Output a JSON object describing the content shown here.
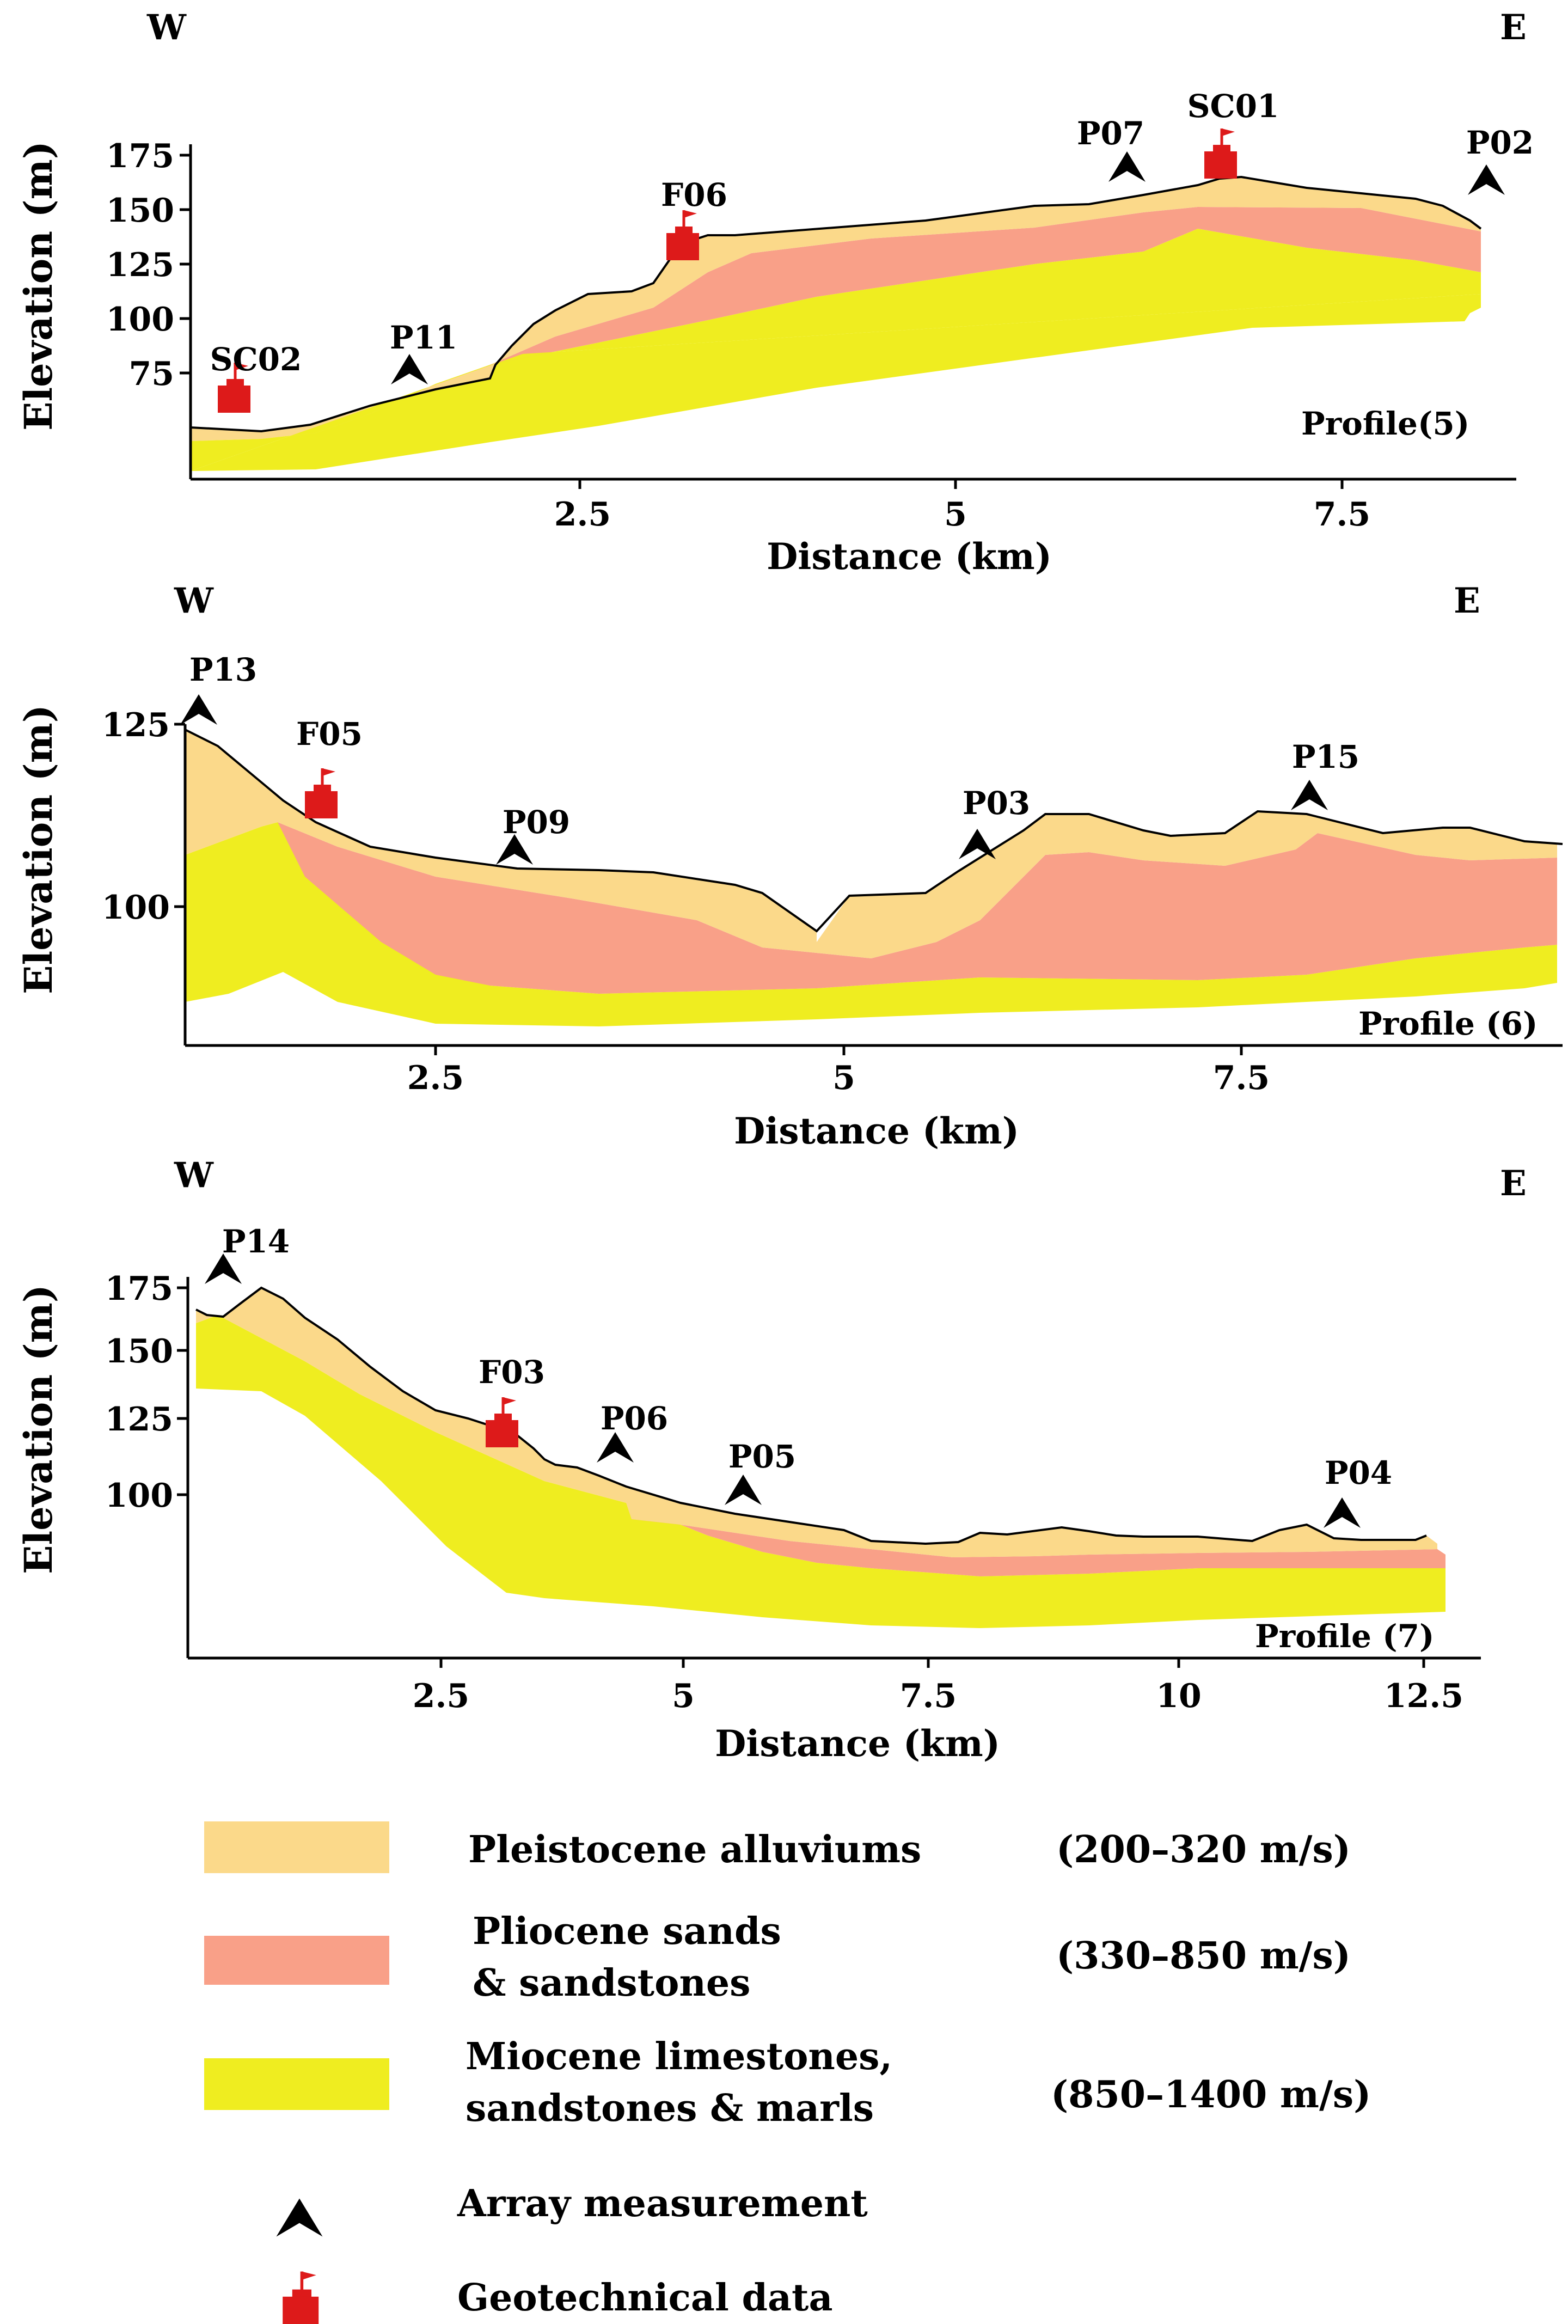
{
  "colors": {
    "pleistocene": "#fbd98a",
    "pliocene": "#f9a088",
    "miocene": "#efed20",
    "marker": "#dd1a1a"
  },
  "profiles": [
    {
      "label": "Profile(5)",
      "west": "W",
      "east": "E",
      "xlabel": "Distance (km)",
      "ylabel": "Elevation (m)",
      "xticks": [
        "2.5",
        "5",
        "7.5"
      ],
      "yticks": [
        "175",
        "150",
        "125",
        "100",
        "75"
      ],
      "array_stations": [
        "P11",
        "P07",
        "P02"
      ],
      "geotech_stations": [
        "SC02",
        "F06",
        "SC01"
      ]
    },
    {
      "label": "Profile (6)",
      "west": "W",
      "east": "E",
      "xlabel": "Distance (km)",
      "ylabel": "Elevation (m)",
      "xticks": [
        "2.5",
        "5",
        "7.5"
      ],
      "yticks": [
        "125",
        "100"
      ],
      "array_stations": [
        "P13",
        "P09",
        "P03",
        "P15"
      ],
      "geotech_stations": [
        "F05"
      ]
    },
    {
      "label": "Profile (7)",
      "west": "W",
      "east": "E",
      "xlabel": "Distance (km)",
      "ylabel": "Elevation (m)",
      "xticks": [
        "2.5",
        "5",
        "7.5",
        "10",
        "12.5"
      ],
      "yticks": [
        "175",
        "150",
        "125",
        "100"
      ],
      "array_stations": [
        "P14",
        "P06",
        "P05",
        "P04"
      ],
      "geotech_stations": [
        "F03"
      ]
    }
  ],
  "legend": {
    "pleistocene_name": "Pleistocene  alluviums",
    "pleistocene_range": "(200–320 m/s)",
    "pliocene_name_1": "Pliocene sands",
    "pliocene_name_2": "& sandstones",
    "pliocene_range": "(330–850 m/s)",
    "miocene_name_1": "Miocene limestones,",
    "miocene_name_2": "sandstones & marls",
    "miocene_range": "(850–1400 m/s)",
    "array": "Array measurement",
    "geotech": "Geotechnical data"
  }
}
